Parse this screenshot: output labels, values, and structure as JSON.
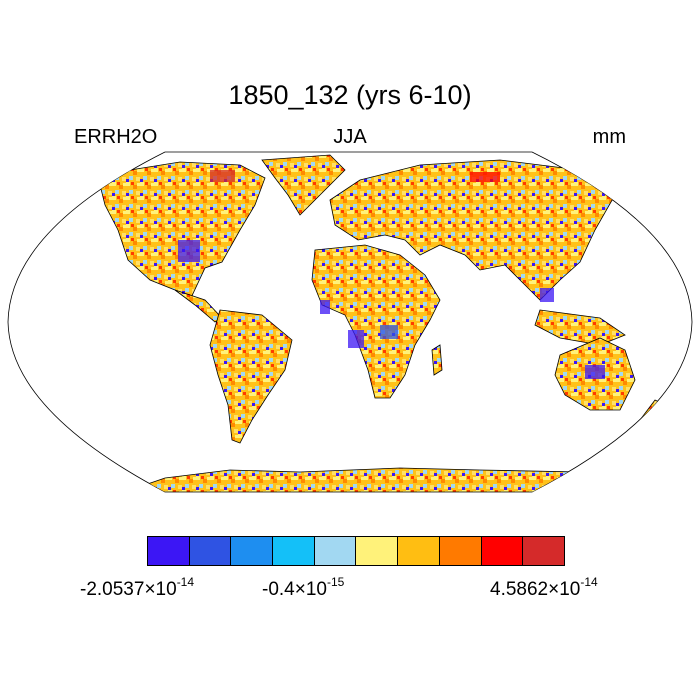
{
  "title": "1850_132 (yrs 6-10)",
  "variable": "ERRH2O",
  "season": "JJA",
  "units": "mm",
  "colorbar": {
    "colors": [
      "#3c16f5",
      "#2f53e3",
      "#1e8ef0",
      "#14c0f8",
      "#a2d8f2",
      "#fff27a",
      "#ffbe12",
      "#ff7a00",
      "#ff0000",
      "#d52a2a"
    ],
    "labels": [
      {
        "mant": "-2.0537",
        "times": "×10",
        "exp": "-14"
      },
      {
        "mant": "-0.4",
        "times": "×10",
        "exp": "-15"
      },
      {
        "mant": "4.5862",
        "times": "×10",
        "exp": "-14"
      }
    ]
  }
}
